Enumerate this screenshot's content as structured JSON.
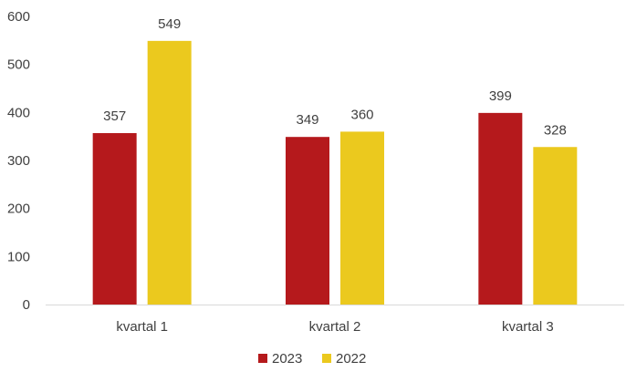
{
  "chart_data": {
    "type": "bar",
    "categories": [
      "kvartal 1",
      "kvartal 2",
      "kvartal 3"
    ],
    "series": [
      {
        "name": "2023",
        "values": [
          357,
          349,
          399
        ],
        "color": "#B5191C"
      },
      {
        "name": "2022",
        "values": [
          549,
          360,
          328
        ],
        "color": "#EBC91E"
      }
    ],
    "yticks": [
      "0",
      "100",
      "200",
      "300",
      "400",
      "500",
      "600"
    ],
    "ylim": [
      0,
      600
    ],
    "grid": false,
    "legend_position": "bottom",
    "axis_color": "#D9D9D9",
    "text_color": "#404040"
  }
}
